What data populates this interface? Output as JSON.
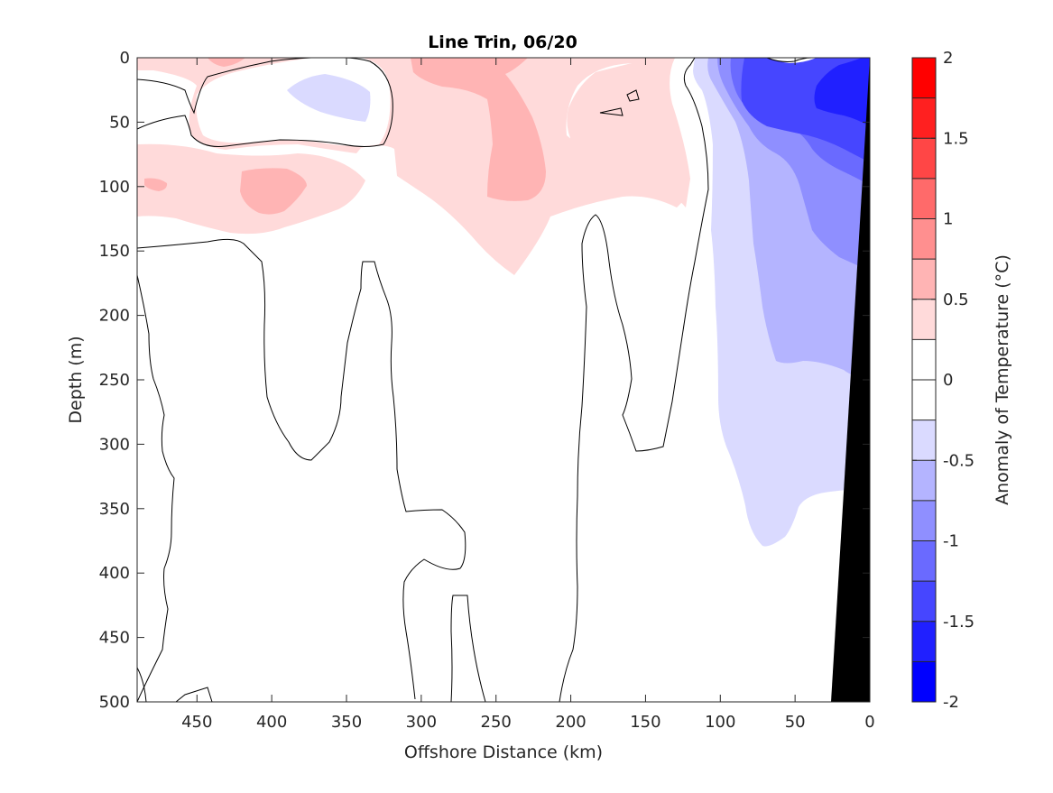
{
  "chart_data": {
    "type": "heatmap",
    "title": "Line Trin, 06/20",
    "xlabel": "Offshore Distance (km)",
    "ylabel": "Depth (m)",
    "xlim": [
      490,
      0
    ],
    "ylim": [
      0,
      500
    ],
    "x_reversed": true,
    "y_reversed": true,
    "x_ticks": [
      450,
      400,
      350,
      300,
      250,
      200,
      150,
      100,
      50,
      0
    ],
    "y_ticks": [
      0,
      50,
      100,
      150,
      200,
      250,
      300,
      350,
      400,
      450,
      500
    ],
    "colorbar": {
      "label": "Anomaly of Temperature (°C)",
      "limits": [
        -2,
        2
      ],
      "tick_values": [
        2,
        1.5,
        1,
        0.5,
        0,
        -0.5,
        -1,
        -1.5,
        -2
      ],
      "tick_labels": [
        "2",
        "1.5",
        "1",
        "0.5",
        "0",
        "-0.5",
        "-1",
        "-1.5",
        "-2"
      ],
      "levels": [
        {
          "range": [
            1.75,
            2.0
          ],
          "color": "#ff0000"
        },
        {
          "range": [
            1.5,
            1.75
          ],
          "color": "#ff2020"
        },
        {
          "range": [
            1.25,
            1.5
          ],
          "color": "#ff4646"
        },
        {
          "range": [
            1.0,
            1.25
          ],
          "color": "#ff6a6a"
        },
        {
          "range": [
            0.75,
            1.0
          ],
          "color": "#ff8f8f"
        },
        {
          "range": [
            0.5,
            0.75
          ],
          "color": "#ffb4b4"
        },
        {
          "range": [
            0.25,
            0.5
          ],
          "color": "#ffdada"
        },
        {
          "range": [
            0.0,
            0.25
          ],
          "color": "#ffffff"
        },
        {
          "range": [
            -0.25,
            0.0
          ],
          "color": "#ffffff"
        },
        {
          "range": [
            -0.5,
            -0.25
          ],
          "color": "#dadaff"
        },
        {
          "range": [
            -0.75,
            -0.5
          ],
          "color": "#b4b4ff"
        },
        {
          "range": [
            -1.0,
            -0.75
          ],
          "color": "#8f8fff"
        },
        {
          "range": [
            -1.25,
            -1.0
          ],
          "color": "#6a6aff"
        },
        {
          "range": [
            -1.5,
            -1.25
          ],
          "color": "#4646ff"
        },
        {
          "range": [
            -1.75,
            -1.5
          ],
          "color": "#2020ff"
        },
        {
          "range": [
            -2.0,
            -1.75
          ],
          "color": "#0000ff"
        }
      ]
    },
    "bathymetry_color": "#000000",
    "contour_line_color": "#000000"
  }
}
